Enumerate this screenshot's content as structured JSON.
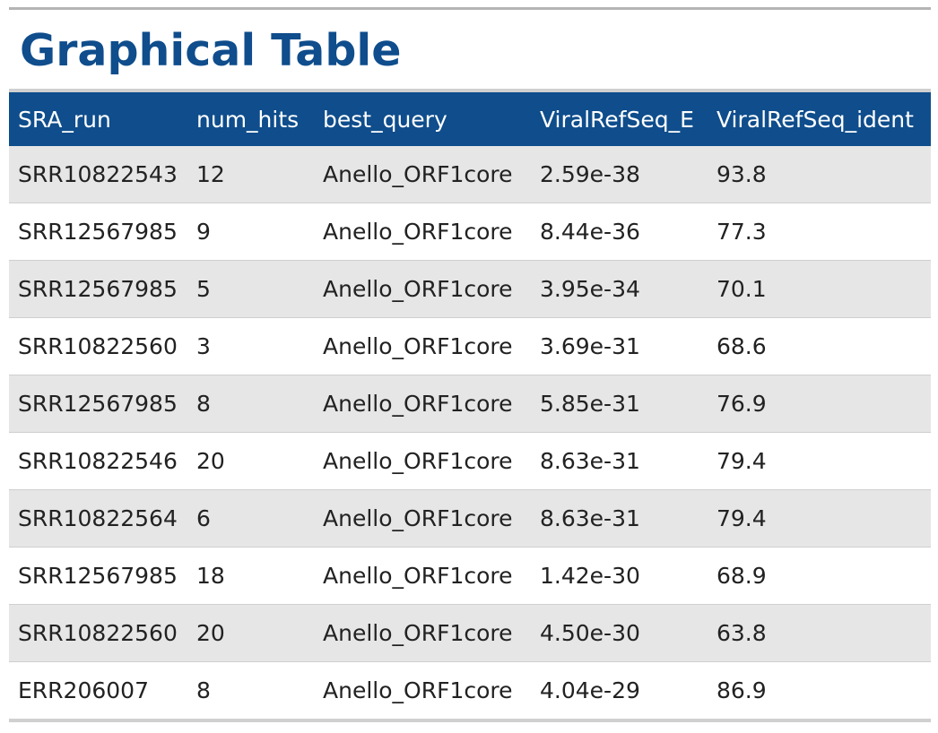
{
  "title": "Graphical Table",
  "colors": {
    "header_bg": "#0f4d8c",
    "title": "#0f4d8c",
    "row_alt": "#e6e6e6"
  },
  "table": {
    "columns": [
      "SRA_run",
      "num_hits",
      "best_query",
      "ViralRefSeq_E",
      "ViralRefSeq_ident"
    ],
    "rows": [
      [
        "SRR10822543",
        "12",
        "Anello_ORF1core",
        "2.59e-38",
        "93.8"
      ],
      [
        "SRR12567985",
        "9",
        "Anello_ORF1core",
        "8.44e-36",
        "77.3"
      ],
      [
        "SRR12567985",
        "5",
        "Anello_ORF1core",
        "3.95e-34",
        "70.1"
      ],
      [
        "SRR10822560",
        "3",
        "Anello_ORF1core",
        "3.69e-31",
        "68.6"
      ],
      [
        "SRR12567985",
        "8",
        "Anello_ORF1core",
        "5.85e-31",
        "76.9"
      ],
      [
        "SRR10822546",
        "20",
        "Anello_ORF1core",
        "8.63e-31",
        "79.4"
      ],
      [
        "SRR10822564",
        "6",
        "Anello_ORF1core",
        "8.63e-31",
        "79.4"
      ],
      [
        "SRR12567985",
        "18",
        "Anello_ORF1core",
        "1.42e-30",
        "68.9"
      ],
      [
        "SRR10822560",
        "20",
        "Anello_ORF1core",
        "4.50e-30",
        "63.8"
      ],
      [
        "ERR206007",
        "8",
        "Anello_ORF1core",
        "4.04e-29",
        "86.9"
      ]
    ]
  }
}
